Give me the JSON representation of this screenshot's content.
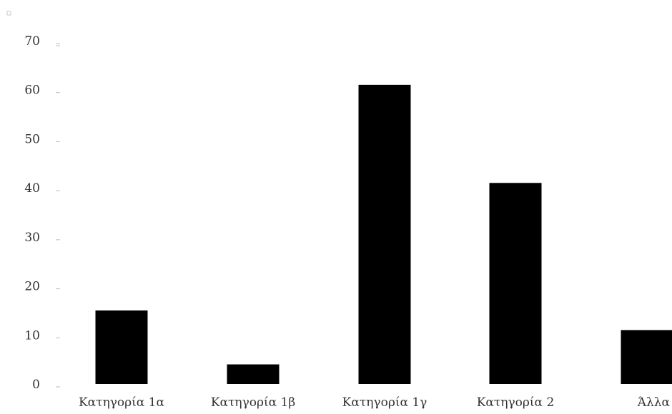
{
  "chart_data": {
    "type": "bar",
    "title": "",
    "xlabel": "",
    "ylabel": "",
    "categories": [
      "Κατηγορία 1α",
      "Κατηγορία 1β",
      "Κατηγορία 1γ",
      "Κατηγορία 2",
      "Άλλα"
    ],
    "values": [
      15,
      4,
      61,
      41,
      11
    ],
    "ylim": [
      0,
      70
    ],
    "yticks": [
      0,
      10,
      20,
      30,
      40,
      50,
      60,
      70
    ],
    "grid": false,
    "legend": "none",
    "bar_color": "#000000",
    "tick_color": "#bfbfbf",
    "label_color": "#333333"
  }
}
